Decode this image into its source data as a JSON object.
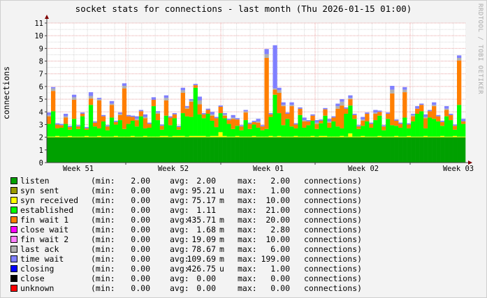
{
  "title": "socket stats for connections - last month (Thu 2026-01-15 01:00)",
  "watermark": "RRDTOOL / TOBI OETIKER",
  "chart_data": {
    "type": "area",
    "stacked": true,
    "title": "socket stats for connections - last month (Thu 2026-01-15 01:00)",
    "ylabel": "connections",
    "xlabel": "",
    "ylim": [
      0,
      11
    ],
    "yticks": [
      "0",
      "1",
      "2",
      "3",
      "4",
      "5",
      "6",
      "7",
      "8",
      "9",
      "10",
      "11"
    ],
    "xticks": [
      "Week 51",
      "Week 52",
      "Week 01",
      "Week 02",
      "Week 03"
    ],
    "grid": true,
    "series": [
      {
        "name": "listen",
        "color": "#00a000",
        "values": "constant",
        "constant": 2.0
      },
      {
        "name": "syn received",
        "color": "#ffff00",
        "values": [
          0.05,
          0.05,
          0.1,
          0.05,
          0.05,
          0.1,
          0.05,
          0.05,
          0.05,
          0.1,
          0.05,
          0.05,
          0.1,
          0.05,
          0.05,
          0.05,
          0.1,
          0.05,
          0.05,
          0.05,
          0.1,
          0.05,
          0.05,
          0.1,
          0.05,
          0.05,
          0.05,
          0.1,
          0.1,
          0.05,
          0.1,
          0.1,
          0.1,
          0.05,
          0.1,
          0.1,
          0.1,
          0.1,
          0.05,
          0.1,
          0.1,
          0.4,
          0.1,
          0.05,
          0.05,
          0.1,
          0.05,
          0.05,
          0.05,
          0.1,
          0.05,
          0.05,
          0.05,
          0.1,
          0.05,
          0.1,
          0.05,
          0.05,
          0.05,
          0.1,
          0.05,
          0.05,
          0.05,
          0.1,
          0.05,
          0.1,
          0.1,
          0.05,
          0.05,
          0.05,
          0.1,
          0.05,
          0.3,
          0.05,
          0.05,
          0.1,
          0.05,
          0.05,
          0.05,
          0.1,
          0.05,
          0.05,
          0.05,
          0.1,
          0.05,
          0.05,
          0.1,
          0.05,
          0.05,
          0.05,
          0.1,
          0.05,
          0.05,
          0.05,
          0.1,
          0.05,
          0.05,
          0.1,
          0.05,
          0.05
        ]
      },
      {
        "name": "established",
        "color": "#00ff00",
        "values": [
          1.0,
          2.0,
          0.6,
          0.7,
          1.0,
          0.5,
          1.4,
          0.6,
          1.6,
          0.5,
          2.5,
          0.8,
          0.6,
          1.2,
          0.5,
          1.5,
          0.9,
          1.3,
          0.6,
          1.0,
          1.2,
          0.8,
          1.6,
          0.6,
          0.7,
          2.4,
          1.3,
          0.5,
          1.6,
          0.9,
          1.4,
          0.5,
          1.8,
          1.6,
          1.5,
          3.8,
          1.7,
          1.4,
          1.8,
          1.2,
          0.7,
          1.5,
          1.4,
          1.0,
          0.6,
          0.8,
          0.5,
          1.3,
          0.6,
          0.9,
          0.7,
          0.5,
          0.6,
          1.5,
          3.3,
          1.8,
          0.9,
          1.4,
          0.8,
          0.6,
          1.7,
          0.7,
          0.9,
          1.2,
          0.6,
          1.0,
          1.6,
          0.7,
          1.2,
          0.8,
          0.6,
          1.8,
          2.2,
          1.4,
          0.6,
          0.8,
          1.2,
          0.7,
          1.3,
          1.6,
          0.5,
          1.4,
          0.9,
          0.8,
          0.7,
          1.5,
          0.6,
          1.2,
          1.8,
          2.0,
          0.6,
          1.5,
          1.4,
          1.2,
          0.8,
          1.6,
          1.3,
          0.5,
          2.5,
          1.0
        ]
      },
      {
        "name": "fin wait 1",
        "color": "#ff7f00",
        "values": [
          0.6,
          1.6,
          0.3,
          0.2,
          0.5,
          0.2,
          1.5,
          0.2,
          0.2,
          0.1,
          0.5,
          0.3,
          2.2,
          0.4,
          0.3,
          1.0,
          0.2,
          0.4,
          3.2,
          0.6,
          0.3,
          0.5,
          0.4,
          0.8,
          0.3,
          0.5,
          0.5,
          0.3,
          1.2,
          0.6,
          0.3,
          0.2,
          1.6,
          0.6,
          1.2,
          0.2,
          0.8,
          0.3,
          0.3,
          0.4,
          0.7,
          0.5,
          0.2,
          0.3,
          0.8,
          0.5,
          0.3,
          0.6,
          0.4,
          0.2,
          0.4,
          0.3,
          5.6,
          0.2,
          0.4,
          1.6,
          1.5,
          0.4,
          1.6,
          0.3,
          0.5,
          0.5,
          0.3,
          0.4,
          0.4,
          0.2,
          0.5,
          0.4,
          0.3,
          1.4,
          1.8,
          0.4,
          0.5,
          0.3,
          0.2,
          0.4,
          0.6,
          0.3,
          0.5,
          0.3,
          0.3,
          0.4,
          2.5,
          0.4,
          0.3,
          2.0,
          0.3,
          0.4,
          0.4,
          0.5,
          0.8,
          0.5,
          1.0,
          0.4,
          0.3,
          0.5,
          0.4,
          0.3,
          3.5,
          0.2
        ]
      },
      {
        "name": "last ack",
        "color": "#b0b0b0",
        "values": [
          0.1,
          0.2,
          0,
          0,
          0.1,
          0,
          0.2,
          0,
          0,
          0,
          0.2,
          0,
          0.1,
          0,
          0,
          0.1,
          0,
          0.1,
          0.2,
          0,
          0,
          0.1,
          0,
          0.1,
          0,
          0,
          0.1,
          0,
          0.2,
          0,
          0,
          0,
          0.2,
          0.1,
          0.1,
          0,
          0.3,
          0,
          0,
          0.1,
          0,
          0,
          0.1,
          0,
          0.1,
          0,
          0,
          0.1,
          0,
          0,
          0.1,
          0,
          0.3,
          0,
          0.1,
          0.2,
          0.1,
          0,
          0.1,
          0,
          0,
          0.1,
          0,
          0,
          0.1,
          0,
          0,
          0.1,
          0,
          0.2,
          0.3,
          0,
          0.1,
          0,
          0,
          0.1,
          0,
          0,
          0.1,
          0,
          0,
          0,
          0.3,
          0,
          0,
          0.2,
          0,
          0.1,
          0,
          0,
          0.1,
          0,
          0.1,
          0,
          0,
          0.1,
          0,
          0,
          0.2,
          0
        ]
      },
      {
        "name": "time wait",
        "color": "#8080ff",
        "values": [
          0.2,
          0.1,
          0.1,
          0.1,
          0.2,
          0.1,
          0.2,
          0.1,
          0.1,
          0.1,
          0.3,
          0.1,
          0.1,
          0.1,
          0.1,
          0.2,
          0.1,
          0.1,
          0.2,
          0.1,
          0.1,
          0.2,
          0.1,
          0.2,
          0.1,
          0.2,
          0.1,
          0.1,
          0.2,
          0.1,
          0.1,
          0.1,
          0.2,
          0.1,
          0.1,
          0.1,
          0.3,
          0.1,
          0.1,
          0.2,
          0.1,
          0.1,
          0.1,
          0.1,
          0.2,
          0.1,
          0.1,
          0.1,
          0.1,
          0.1,
          0.2,
          0.1,
          0.4,
          0.1,
          3.4,
          0.2,
          0.2,
          0.1,
          0.2,
          0.1,
          0.1,
          0.2,
          0.1,
          0.1,
          0.2,
          0.1,
          0.1,
          0.2,
          0.1,
          0.2,
          0.2,
          0.1,
          0.2,
          0.1,
          0.1,
          0.2,
          0.1,
          0.1,
          0.2,
          0.1,
          0.1,
          0.1,
          0.3,
          0.1,
          0.1,
          0.2,
          0.1,
          0.1,
          0.2,
          0.1,
          0.2,
          0.1,
          0.2,
          0.1,
          0.1,
          0.2,
          0.1,
          0.1,
          0.2,
          0.2
        ]
      }
    ]
  },
  "legend": [
    {
      "label": "listen",
      "color": "#00a000",
      "min": "2.00",
      "avg": "2.00",
      "avg_unit": "",
      "max": "2.00",
      "unit": "connections)"
    },
    {
      "label": "syn sent",
      "color": "#999900",
      "min": "0.00",
      "avg": "95.21",
      "avg_unit": "u",
      "max": "1.00",
      "unit": "connections)"
    },
    {
      "label": "syn received",
      "color": "#ffff00",
      "min": "0.00",
      "avg": "75.17",
      "avg_unit": "m",
      "max": "10.00",
      "unit": "connections)"
    },
    {
      "label": "established",
      "color": "#00ff00",
      "min": "0.00",
      "avg": "1.11",
      "avg_unit": "",
      "max": "21.00",
      "unit": "connections)"
    },
    {
      "label": "fin wait 1",
      "color": "#ff7f00",
      "min": "0.00",
      "avg": "435.71",
      "avg_unit": "m",
      "max": "20.00",
      "unit": "connections)"
    },
    {
      "label": "close wait",
      "color": "#ff00ff",
      "min": "0.00",
      "avg": "1.68",
      "avg_unit": "m",
      "max": "2.80",
      "unit": "connections)"
    },
    {
      "label": "fin wait 2",
      "color": "#ff80ff",
      "min": "0.00",
      "avg": "19.09",
      "avg_unit": "m",
      "max": "10.00",
      "unit": "connections)"
    },
    {
      "label": "last ack",
      "color": "#b0b0b0",
      "min": "0.00",
      "avg": "78.67",
      "avg_unit": "m",
      "max": "6.00",
      "unit": "connections)"
    },
    {
      "label": "time wait",
      "color": "#8080ff",
      "min": "0.00",
      "avg": "109.69",
      "avg_unit": "m",
      "max": "199.00",
      "unit": "connections)"
    },
    {
      "label": "closing",
      "color": "#0000ff",
      "min": "0.00",
      "avg": "426.75",
      "avg_unit": "u",
      "max": "1.00",
      "unit": "connections)"
    },
    {
      "label": "close",
      "color": "#000000",
      "min": "0.00",
      "avg": "0.00",
      "avg_unit": "",
      "max": "0.00",
      "unit": "connections)"
    },
    {
      "label": "unknown",
      "color": "#ff0000",
      "min": "0.00",
      "avg": "0.00",
      "avg_unit": "",
      "max": "0.00",
      "unit": "connections)"
    }
  ],
  "legend_labels": {
    "min": "(min:",
    "avg": "avg:",
    "max": "max:"
  }
}
